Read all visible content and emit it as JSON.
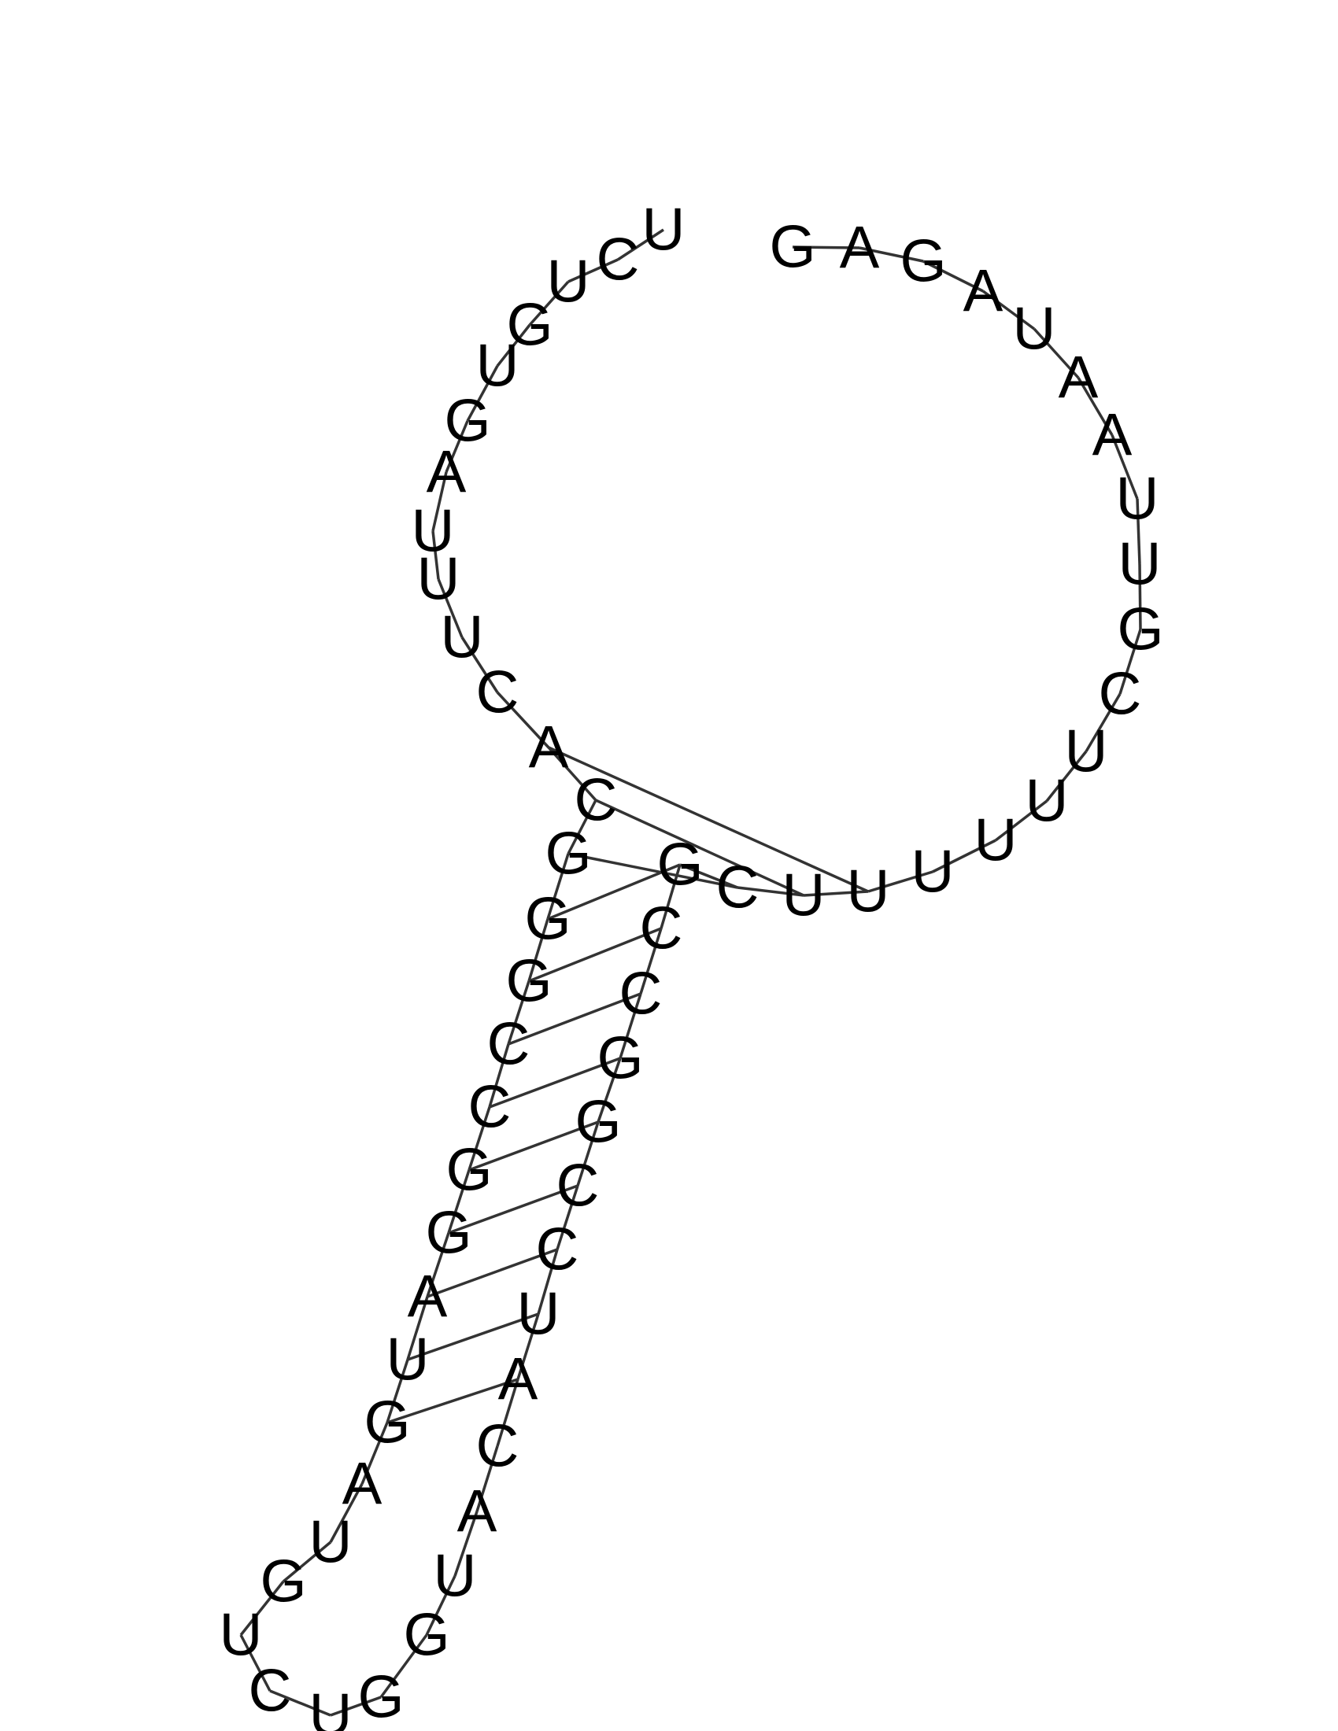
{
  "diagram": {
    "type": "rna-secondary-structure",
    "backbone_color": "#333333",
    "text_color": "#000000",
    "sequence": "GAGAUAAUUGCUUUUUUCGCCGGCCUACAUGGUCUGUAGUAGGCCGGGCACUUUAGUGUCU",
    "pairs": [
      [
        15,
        49
      ],
      [
        16,
        48
      ],
      [
        17,
        47
      ],
      [
        18,
        46
      ],
      [
        19,
        45
      ],
      [
        20,
        44
      ],
      [
        21,
        43
      ],
      [
        22,
        42
      ],
      [
        23,
        41
      ],
      [
        24,
        40
      ],
      [
        25,
        39
      ],
      [
        26,
        38
      ]
    ]
  }
}
